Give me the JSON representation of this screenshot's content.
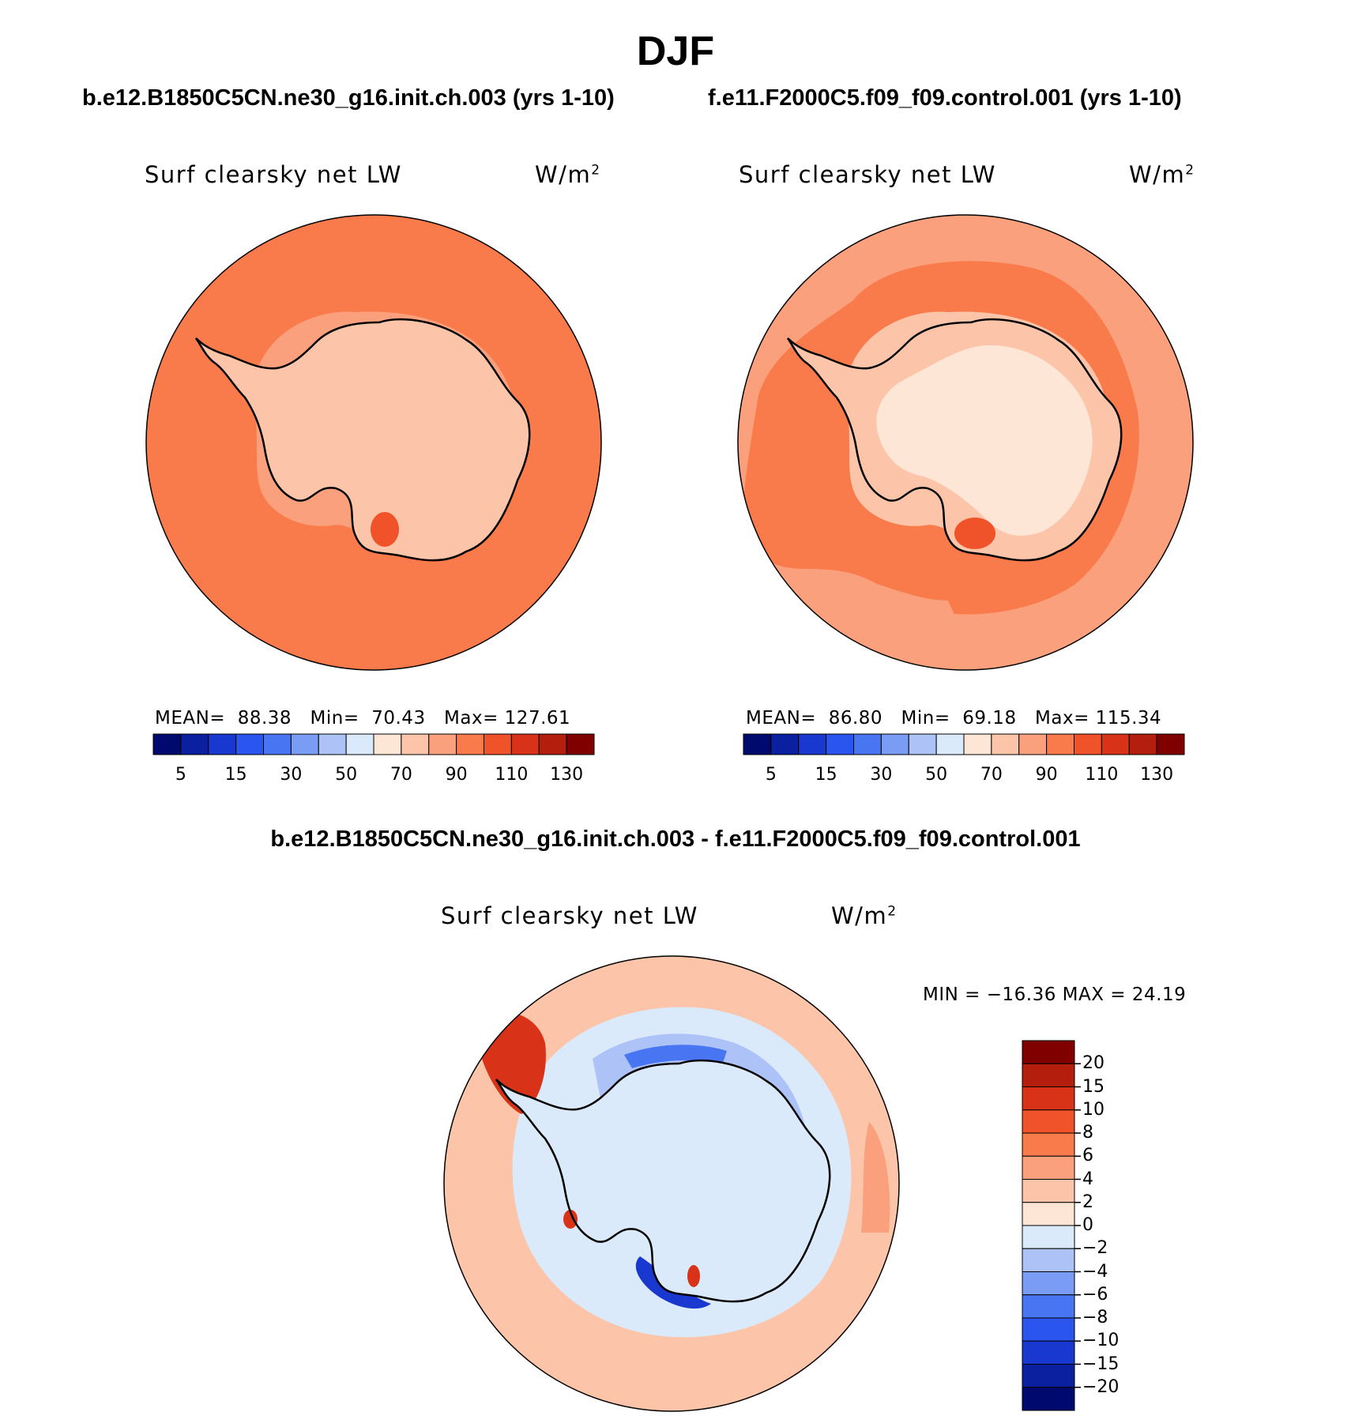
{
  "title": "DJF",
  "panels": [
    {
      "case": "b.e12.B1850C5CN.ne30_g16.init.ch.003 (yrs 1-10)",
      "variable": "Surf clearsky net LW",
      "units_base": "W/m",
      "units_exp": "2",
      "stats": {
        "mean_label": "MEAN=",
        "mean": "88.38",
        "min_label": "Min=",
        "min": "70.43",
        "max_label": "Max=",
        "max": "127.61"
      }
    },
    {
      "case": "f.e11.F2000C5.f09_f09.control.001 (yrs 1-10)",
      "variable": "Surf clearsky net LW",
      "units_base": "W/m",
      "units_exp": "2",
      "stats": {
        "mean_label": "MEAN=",
        "mean": "86.80",
        "min_label": "Min=",
        "min": "69.18",
        "max_label": "Max=",
        "max": "115.34"
      }
    }
  ],
  "colorbar_main": {
    "colors": [
      "#000a6e",
      "#0a20a0",
      "#1838d0",
      "#2a55ee",
      "#4876f2",
      "#7a9cf4",
      "#adc3f8",
      "#daeafb",
      "#fde6d6",
      "#fcc4a8",
      "#fba07c",
      "#f97a4a",
      "#f0522a",
      "#d83318",
      "#b41e0c",
      "#800000"
    ],
    "tick_labels": [
      "5",
      "15",
      "30",
      "50",
      "70",
      "90",
      "110",
      "130"
    ]
  },
  "difference": {
    "title": "b.e12.B1850C5CN.ne30_g16.init.ch.003 - f.e11.F2000C5.f09_f09.control.001",
    "variable": "Surf clearsky net LW",
    "units_base": "W/m",
    "units_exp": "2",
    "min_max": "MIN = −16.36 MAX =  24.19",
    "colorbar": {
      "colors_top_to_bottom": [
        "#800000",
        "#b41e0c",
        "#d83318",
        "#f0522a",
        "#f97a4a",
        "#fba07c",
        "#fcc4a8",
        "#fde6d6",
        "#daeafb",
        "#adc3f8",
        "#7a9cf4",
        "#4876f2",
        "#2a55ee",
        "#1838d0",
        "#0a20a0",
        "#000a6e"
      ],
      "tick_labels": [
        "20",
        "15",
        "10",
        "8",
        "6",
        "4",
        "2",
        "0",
        "−2",
        "−4",
        "−6",
        "−8",
        "−10",
        "−15",
        "−20"
      ]
    }
  },
  "map_colors": {
    "ocean_dark": "#f97a4a",
    "ocean_mid": "#fba07c",
    "land_light": "#fcc4a8",
    "land_pale": "#fde6d6",
    "hot": "#f0522a",
    "diff_red": "#d83318",
    "diff_blue_light": "#daeafb",
    "diff_blue_mid": "#adc3f8",
    "diff_blue_dark": "#4876f2",
    "diff_blue_deep": "#1838d0"
  }
}
